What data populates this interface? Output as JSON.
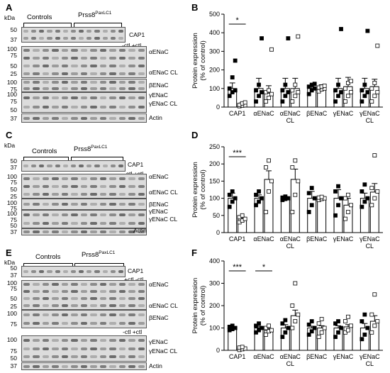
{
  "letters": {
    "A": "A",
    "B": "B",
    "C": "C",
    "D": "D",
    "E": "E",
    "F": "F"
  },
  "kda": "kDa",
  "blots": {
    "A": {
      "controls": "Controls",
      "mutant_base": "Prss8",
      "mutant_sup": "PaxLC1",
      "ctl_lbl": "-ctl +ctl",
      "labels": [
        "CAP1",
        "αENaC",
        "αENaC CL",
        "βENaC",
        "γENaC",
        "γENaC CL",
        "Actin"
      ],
      "mw": [
        "50",
        "37",
        "100",
        "75",
        "50",
        "25",
        "100",
        "75",
        "100",
        "75",
        "50",
        "37"
      ]
    },
    "C": {
      "controls": "Controls",
      "mutant_base": "Prss8",
      "mutant_sup": "PaxLC1",
      "ctl_lbl": "-ctl +ctl",
      "labels": [
        "CAP1",
        "αENaC",
        "αENaC CL",
        "βENaC",
        "γENaC",
        "γENaC CL",
        "Actin"
      ],
      "mw": [
        "50",
        "37",
        "100",
        "75",
        "50",
        "25",
        "100",
        "75",
        "100",
        "75",
        "50",
        "37"
      ]
    },
    "E": {
      "controls": "Controls",
      "mutant_base": "Prss8",
      "mutant_sup": "PaxLC1",
      "ctl_lbl1": "+ctl -ctl",
      "ctl_lbl2": "-ctl +ctl",
      "labels": [
        "CAP1",
        "αENaC",
        "αENaC CL",
        "βENaC",
        "γENaC",
        "γENaC CL",
        "Actin"
      ],
      "mw": [
        "50",
        "37",
        "100",
        "75",
        "50",
        "25",
        "100",
        "75",
        "100",
        "75",
        "50",
        "37"
      ]
    }
  },
  "chart_data": [
    {
      "panel": "B",
      "type": "bar",
      "ylabel": "Protein expression\n(% of control)",
      "ylim": [
        0,
        500
      ],
      "yticks": [
        0,
        100,
        200,
        300,
        400,
        500
      ],
      "categories": [
        "CAP1",
        "αENaC",
        "αENaC\nCL",
        "βENaC",
        "γENaC",
        "γENaC\nCL"
      ],
      "series": [
        {
          "fill": "#000",
          "bars": [
            100,
            100,
            100,
            100,
            100,
            100
          ],
          "err": [
            30,
            55,
            55,
            10,
            55,
            55
          ],
          "points": [
            [
              60,
              80,
              90,
              100,
              160,
              250
            ],
            [
              30,
              60,
              80,
              90,
              120,
              370
            ],
            [
              30,
              60,
              80,
              90,
              120,
              370
            ],
            [
              70,
              90,
              100,
              110,
              120,
              125
            ],
            [
              30,
              60,
              80,
              90,
              120,
              420
            ],
            [
              30,
              60,
              80,
              90,
              120,
              410
            ]
          ]
        },
        {
          "fill": "#fff",
          "bars": [
            15,
            75,
            100,
            100,
            110,
            110
          ],
          "err": [
            8,
            40,
            55,
            20,
            50,
            40
          ],
          "points": [
            [
              5,
              8,
              10,
              12,
              20,
              25
            ],
            [
              30,
              50,
              70,
              80,
              90,
              310
            ],
            [
              30,
              60,
              80,
              90,
              120,
              380
            ],
            [
              85,
              95,
              100,
              105,
              110,
              115
            ],
            [
              30,
              60,
              80,
              100,
              130,
              140
            ],
            [
              30,
              60,
              80,
              100,
              130,
              330
            ]
          ]
        }
      ],
      "sig": [
        {
          "group": 0,
          "label": "*"
        }
      ]
    },
    {
      "panel": "D",
      "type": "bar",
      "ylabel": "Protein expression\n(% of control)",
      "ylim": [
        0,
        250
      ],
      "yticks": [
        0,
        50,
        100,
        150,
        200,
        250
      ],
      "categories": [
        "CAP1",
        "αENaC",
        "αENaC\nCL",
        "βENaC",
        "γENaC",
        "γENaC\nCL"
      ],
      "series": [
        {
          "fill": "#000",
          "bars": [
            100,
            100,
            100,
            100,
            100,
            100
          ],
          "err": [
            15,
            10,
            5,
            20,
            25,
            15
          ],
          "points": [
            [
              75,
              90,
              100,
              110,
              120
            ],
            [
              80,
              90,
              100,
              110,
              120
            ],
            [
              95,
              98,
              100,
              102,
              105
            ],
            [
              60,
              80,
              100,
              115,
              130
            ],
            [
              50,
              80,
              100,
              120,
              135
            ],
            [
              75,
              90,
              100,
              120,
              140
            ]
          ]
        },
        {
          "fill": "#fff",
          "bars": [
            40,
            155,
            155,
            100,
            80,
            118
          ],
          "err": [
            5,
            25,
            30,
            3,
            20,
            25
          ],
          "points": [
            [
              30,
              35,
              40,
              45,
              50
            ],
            [
              60,
              120,
              150,
              190,
              210
            ],
            [
              60,
              110,
              150,
              190,
              210
            ],
            [
              95,
              98,
              100,
              102,
              104
            ],
            [
              40,
              60,
              80,
              100,
              110
            ],
            [
              80,
              100,
              120,
              130,
              225
            ]
          ]
        }
      ],
      "sig": [
        {
          "group": 0,
          "label": "***"
        }
      ]
    },
    {
      "panel": "F",
      "type": "bar",
      "ylabel": "Protein expression\n(% of control)",
      "ylim": [
        0,
        400
      ],
      "yticks": [
        0,
        100,
        200,
        300,
        400
      ],
      "categories": [
        "CAP1",
        "αENaC",
        "αENaC\nCL",
        "βENaC",
        "γENaC",
        "γENaC\nCL"
      ],
      "series": [
        {
          "fill": "#000",
          "bars": [
            100,
            100,
            100,
            100,
            100,
            100
          ],
          "err": [
            5,
            8,
            15,
            8,
            10,
            20
          ],
          "points": [
            [
              90,
              95,
              100,
              105,
              110
            ],
            [
              80,
              90,
              100,
              110,
              120
            ],
            [
              60,
              80,
              100,
              120,
              135
            ],
            [
              70,
              85,
              100,
              115,
              130
            ],
            [
              60,
              80,
              100,
              120,
              130
            ],
            [
              50,
              70,
              100,
              130,
              160
            ]
          ]
        },
        {
          "fill": "#fff",
          "bars": [
            8,
            90,
            155,
            100,
            105,
            130
          ],
          "err": [
            3,
            8,
            25,
            10,
            10,
            25
          ],
          "points": [
            [
              2,
              5,
              8,
              12,
              15
            ],
            [
              70,
              85,
              90,
              100,
              110
            ],
            [
              100,
              130,
              160,
              200,
              300
            ],
            [
              60,
              80,
              100,
              120,
              140
            ],
            [
              80,
              90,
              110,
              130,
              150
            ],
            [
              80,
              110,
              130,
              160,
              250
            ]
          ]
        }
      ],
      "sig": [
        {
          "group": 0,
          "label": "***"
        },
        {
          "group": 1,
          "label": "*"
        }
      ]
    }
  ]
}
